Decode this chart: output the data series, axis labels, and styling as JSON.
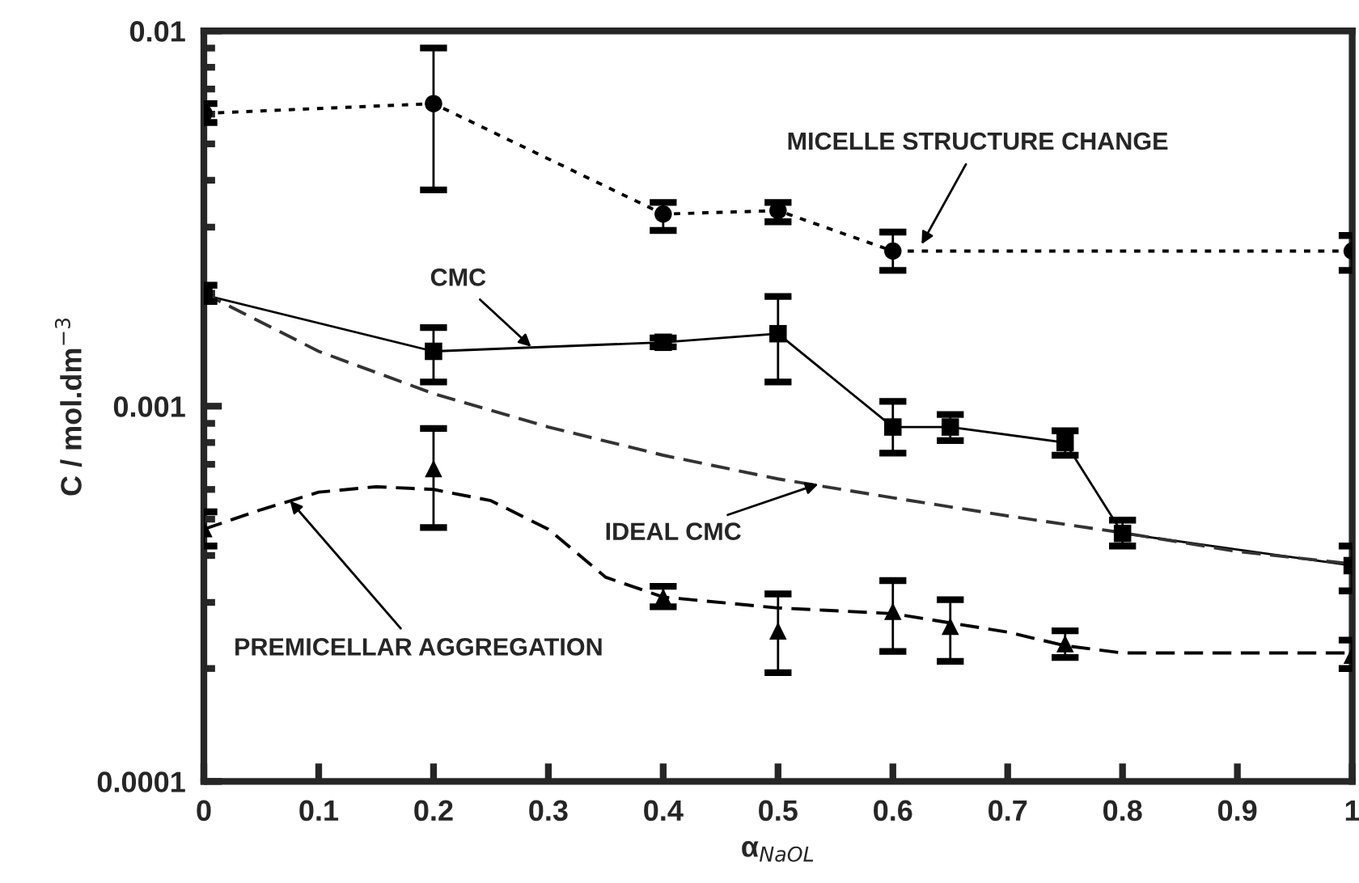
{
  "chart_data": {
    "type": "line",
    "xlabel": "α$_{NaOL}$",
    "ylabel": "C / mol.dm$^{−3}$",
    "log": true,
    "grid": false,
    "xlim": [
      0,
      1
    ],
    "xticks": [
      0,
      0.1,
      0.2,
      0.3,
      0.4,
      0.5,
      0.6,
      0.7,
      0.8,
      0.9,
      1
    ],
    "ylim": [
      0.0001,
      0.01
    ],
    "yticks": [
      0.0001,
      0.001,
      0.01
    ],
    "series": [
      {
        "color": "#000000",
        "marker": "circle",
        "line_style": "dotted",
        "x": [
          0,
          0.2,
          0.4,
          0.5,
          0.6,
          1
        ],
        "values": [
          0.00603,
          0.0064,
          0.00325,
          0.00332,
          0.00259,
          0.00259
        ],
        "errors": [
          [
            0.0057,
            0.0064
          ],
          [
            0.00377,
            0.009
          ],
          [
            0.00294,
            0.00349
          ],
          [
            0.0031,
            0.00349
          ],
          [
            0.0023,
            0.00291
          ],
          [
            0.0023,
            0.00285
          ]
        ]
      },
      {
        "color": "#000000",
        "marker": "square",
        "line_style": "solid",
        "x": [
          0,
          0.2,
          0.4,
          0.5,
          0.6,
          0.65,
          0.75,
          0.8,
          1
        ],
        "values": [
          0.00198,
          0.0014,
          0.00148,
          0.00156,
          0.00088,
          0.00088,
          0.0008,
          0.000458,
          0.000376
        ],
        "errors": [
          [
            0.0019,
            0.0021
          ],
          [
            0.00116,
            0.00162
          ],
          [
            0.00144,
            0.00152
          ],
          [
            0.00116,
            0.00196
          ],
          [
            0.00075,
            0.00103
          ],
          [
            0.00081,
            0.00095
          ],
          [
            0.00074,
            0.00086
          ],
          [
            0.000424,
            0.000497
          ],
          [
            0.000322,
            0.000424
          ]
        ]
      },
      {
        "color": "#333333",
        "marker": "none",
        "line_style": "dashed",
        "x": [
          0,
          0.1,
          0.2,
          0.3,
          0.4,
          0.5,
          0.6,
          0.7,
          0.8,
          0.9,
          1
        ],
        "values": [
          0.002,
          0.0014,
          0.00108,
          0.00088,
          0.00074,
          0.00064,
          0.00057,
          0.00051,
          0.00046,
          0.00041,
          0.00038
        ]
      },
      {
        "type": "scatter",
        "color": "#000000",
        "marker": "triangle",
        "x": [
          0,
          0.2,
          0.4,
          0.5,
          0.6,
          0.65,
          0.75,
          1
        ],
        "values": [
          0.000472,
          0.000682,
          0.00031,
          0.000252,
          0.000284,
          0.000259,
          0.000233,
          0.000217
        ],
        "errors": [
          [
            0.000424,
            0.000523
          ],
          [
            0.000475,
            0.000872
          ],
          [
            0.000292,
            0.000331
          ],
          [
            0.000195,
            0.000316
          ],
          [
            0.000222,
            0.000343
          ],
          [
            0.000209,
            0.000305
          ],
          [
            0.000214,
            0.000252
          ],
          [
            0.0002,
            0.000238
          ]
        ]
      },
      {
        "color": "#000000",
        "marker": "none",
        "line_style": "dashed",
        "x": [
          0,
          0.05,
          0.1,
          0.15,
          0.2,
          0.25,
          0.3,
          0.35,
          0.4,
          0.5,
          0.6,
          0.7,
          0.75,
          0.8,
          1
        ],
        "values": [
          0.00047,
          0.00053,
          0.00059,
          0.00061,
          0.0006,
          0.00056,
          0.00047,
          0.00035,
          0.00031,
          0.00029,
          0.00028,
          0.00025,
          0.00023,
          0.00022,
          0.00022
        ]
      }
    ],
    "annotations": [
      {
        "text": "MICELLE STRUCTURE CHANGE",
        "x": 0.625,
        "y": 0.0027
      },
      {
        "text": "CMC",
        "x": 0.285,
        "y": 0.00144
      },
      {
        "text": "IDEAL CMC",
        "x": 0.535,
        "y": 0.00062
      },
      {
        "text": "PREMICELLAR AGGREGATION",
        "x": 0.075,
        "y": 0.00056
      }
    ]
  }
}
